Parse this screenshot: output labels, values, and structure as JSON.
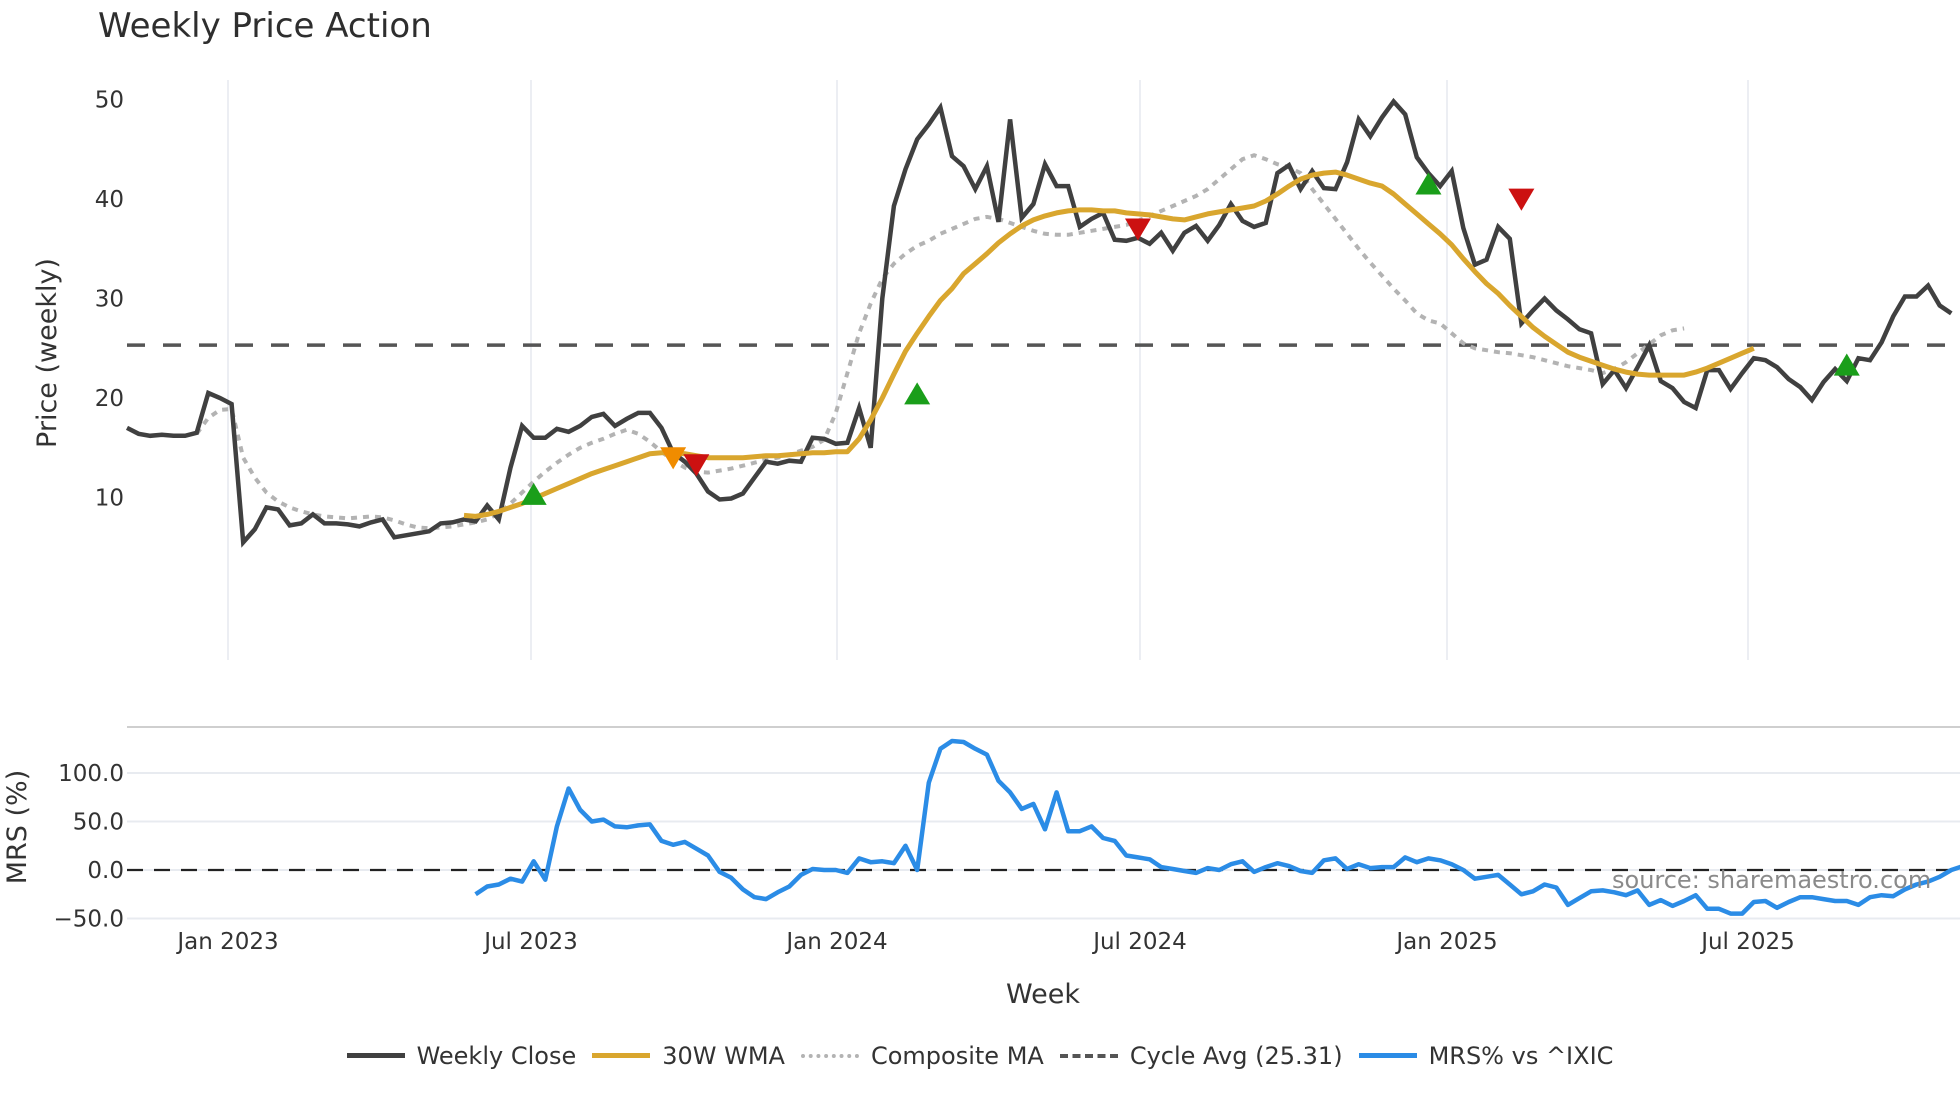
{
  "title": "Weekly Price Action",
  "source": "source: sharemaestro.com",
  "legend": [
    {
      "label": "Weekly Close",
      "color": "#404040",
      "style": "solid"
    },
    {
      "label": "30W WMA",
      "color": "#d9a62e",
      "style": "solid"
    },
    {
      "label": "Composite MA",
      "color": "#b3b3b3",
      "style": "dotted"
    },
    {
      "label": "Cycle Avg (25.31)",
      "color": "#555555",
      "style": "dashed"
    },
    {
      "label": "MRS% vs ^IXIC",
      "color": "#2b8ce6",
      "style": "solid"
    }
  ],
  "chart_data": [
    {
      "type": "line",
      "title": "Weekly Price Action",
      "xlabel": "Week",
      "ylabel": "Price (weekly)",
      "ylim": [
        3,
        52
      ],
      "yticks": [
        10,
        20,
        30,
        40,
        50
      ],
      "xticks": [
        "Jan 2023",
        "Jul 2023",
        "Jan 2024",
        "Jul 2024",
        "Jan 2025",
        "Jul 2025"
      ],
      "grid": "vertical",
      "cycle_avg": 25.31,
      "series": [
        {
          "name": "Weekly Close",
          "color": "#404040",
          "values": [
            17.0,
            16.4,
            16.2,
            16.3,
            16.2,
            16.2,
            16.5,
            20.5,
            20.0,
            19.4,
            5.5,
            6.8,
            9.0,
            8.8,
            7.2,
            7.4,
            8.3,
            7.4,
            7.4,
            7.3,
            7.1,
            7.5,
            7.8,
            6.0,
            6.2,
            6.4,
            6.6,
            7.4,
            7.5,
            7.8,
            7.6,
            9.2,
            7.8,
            13.0,
            17.2,
            16.0,
            16.0,
            16.9,
            16.6,
            17.2,
            18.1,
            18.4,
            17.2,
            17.9,
            18.5,
            18.5,
            17.0,
            14.5,
            13.6,
            12.4,
            10.6,
            9.8,
            9.9,
            10.4,
            12.0,
            13.6,
            13.4,
            13.7,
            13.6,
            16.0,
            15.9,
            15.4,
            15.5,
            19.0,
            15.0,
            30.0,
            39.3,
            43.0,
            46.0,
            47.5,
            49.2,
            44.3,
            43.3,
            41.0,
            43.3,
            37.7,
            48.0,
            38.1,
            39.5,
            43.5,
            41.3,
            41.3,
            37.2,
            38.0,
            38.6,
            35.9,
            35.8,
            36.1,
            35.5,
            36.6,
            34.8,
            36.6,
            37.3,
            35.8,
            37.4,
            39.5,
            37.8,
            37.2,
            37.6,
            42.6,
            43.4,
            41.0,
            42.8,
            41.1,
            41.0,
            43.7,
            48.0,
            46.3,
            48.2,
            49.8,
            48.5,
            44.2,
            42.6,
            41.3,
            42.8,
            37.1,
            33.4,
            33.9,
            37.2,
            36.0,
            27.5,
            28.8,
            30.0,
            28.8,
            27.9,
            26.9,
            26.5,
            21.4,
            22.8,
            21.0,
            23.1,
            25.3,
            21.7,
            21.0,
            19.6,
            19.0,
            22.8,
            22.8,
            20.9,
            22.5,
            24.0,
            23.8,
            23.1,
            21.9,
            21.1,
            19.8,
            21.6,
            22.9,
            21.7,
            24.0,
            23.8,
            25.6,
            28.2,
            30.2,
            30.2,
            31.3,
            29.3,
            28.5
          ]
        },
        {
          "name": "30W WMA",
          "color": "#d9a62e",
          "start_index": 29,
          "values": [
            8.2,
            8.1,
            8.3,
            8.6,
            9.0,
            9.4,
            9.9,
            10.4,
            10.9,
            11.4,
            11.9,
            12.4,
            12.8,
            13.2,
            13.6,
            14.0,
            14.4,
            14.5,
            14.5,
            14.4,
            14.2,
            14.0,
            14.0,
            14.0,
            14.0,
            14.1,
            14.2,
            14.2,
            14.3,
            14.4,
            14.5,
            14.5,
            14.6,
            14.6,
            15.9,
            17.8,
            20.0,
            22.4,
            24.7,
            26.5,
            28.2,
            29.8,
            31.0,
            32.5,
            33.5,
            34.5,
            35.6,
            36.5,
            37.3,
            37.9,
            38.3,
            38.6,
            38.8,
            38.9,
            38.9,
            38.8,
            38.8,
            38.6,
            38.5,
            38.4,
            38.2,
            38.0,
            37.9,
            38.2,
            38.5,
            38.7,
            38.9,
            39.1,
            39.3,
            39.8,
            40.5,
            41.3,
            42.0,
            42.4,
            42.6,
            42.7,
            42.4,
            42.0,
            41.6,
            41.3,
            40.5,
            39.5,
            38.5,
            37.5,
            36.5,
            35.4,
            34.0,
            32.7,
            31.5,
            30.5,
            29.3,
            28.2,
            27.1,
            26.2,
            25.4,
            24.6,
            24.1,
            23.7,
            23.3,
            22.9,
            22.6,
            22.4,
            22.3,
            22.3,
            22.3,
            22.3,
            22.6,
            23.0,
            23.5,
            24.0,
            24.5,
            25.0
          ]
        },
        {
          "name": "Composite MA",
          "color": "#b3b3b3",
          "start_index": 6,
          "values": [
            16.4,
            18.0,
            18.8,
            18.9,
            14.0,
            12.0,
            10.5,
            9.6,
            9.0,
            8.6,
            8.3,
            8.1,
            8.0,
            7.9,
            8.0,
            8.1,
            8.0,
            7.7,
            7.3,
            7.0,
            6.9,
            7.0,
            7.1,
            7.3,
            7.5,
            7.8,
            8.4,
            9.4,
            10.5,
            11.6,
            12.6,
            13.5,
            14.3,
            15.0,
            15.5,
            15.9,
            16.4,
            16.8,
            16.4,
            15.6,
            14.6,
            13.7,
            13.0,
            12.6,
            12.5,
            12.7,
            12.9,
            13.2,
            13.5,
            13.8,
            14.0,
            14.3,
            14.7,
            15.1,
            15.8,
            18.5,
            22.5,
            26.5,
            29.5,
            32.0,
            33.5,
            34.5,
            35.3,
            35.8,
            36.5,
            37.0,
            37.5,
            38.0,
            38.2,
            38.0,
            37.6,
            37.2,
            36.8,
            36.5,
            36.4,
            36.4,
            36.6,
            36.8,
            37.0,
            37.2,
            37.4,
            37.8,
            38.3,
            38.8,
            39.3,
            39.8,
            40.3,
            41.0,
            42.0,
            43.0,
            44.0,
            44.4,
            44.0,
            43.5,
            43.2,
            42.6,
            41.0,
            39.5,
            38.0,
            36.5,
            35.0,
            33.6,
            32.3,
            31.0,
            29.8,
            28.5,
            27.8,
            27.5,
            26.5,
            25.5,
            25.0,
            24.8,
            24.6,
            24.5,
            24.3,
            24.1,
            23.8,
            23.5,
            23.2,
            23.0,
            22.8,
            22.5,
            22.9,
            23.6,
            24.5,
            25.4,
            26.3,
            26.8,
            27.0
          ]
        }
      ],
      "markers": [
        {
          "type": "buy",
          "color": "#1a9e1a",
          "index": 35,
          "price": 10.3
        },
        {
          "type": "sell-orange",
          "color": "#f08c00",
          "index": 47,
          "price": 14.0
        },
        {
          "type": "sell",
          "color": "#cc1111",
          "index": 49,
          "price": 13.3
        },
        {
          "type": "buy",
          "color": "#1a9e1a",
          "index": 68,
          "price": 20.4
        },
        {
          "type": "sell",
          "color": "#cc1111",
          "index": 87,
          "price": 37.0
        },
        {
          "type": "buy",
          "color": "#1a9e1a",
          "index": 112,
          "price": 41.5
        },
        {
          "type": "sell",
          "color": "#cc1111",
          "index": 120,
          "price": 40.0
        },
        {
          "type": "buy",
          "color": "#1a9e1a",
          "index": 148,
          "price": 23.3
        }
      ]
    },
    {
      "type": "line",
      "xlabel": "Week",
      "ylabel": "MRS (%)",
      "ylim": [
        -55,
        140
      ],
      "yticks": [
        "100.0",
        "50.0",
        "0.0",
        "−50.0"
      ],
      "grid": "horizontal",
      "series": [
        {
          "name": "MRS% vs ^IXIC",
          "color": "#2b8ce6",
          "start_index": 30,
          "values": [
            -25,
            -17,
            -15,
            -9,
            -12,
            9,
            -10,
            45,
            84,
            62,
            50,
            52,
            45,
            44,
            46,
            47,
            30,
            26,
            29,
            22,
            15,
            -2,
            -8,
            -20,
            -28,
            -30,
            -23,
            -17,
            -5,
            1,
            0,
            0,
            -3,
            12,
            8,
            9,
            7,
            25,
            0,
            90,
            125,
            133,
            132,
            125,
            119,
            92,
            80,
            63,
            68,
            42,
            80,
            40,
            40,
            45,
            33,
            30,
            15,
            13,
            11,
            3,
            1,
            -1,
            -3,
            2,
            0,
            6,
            9,
            -2,
            3,
            7,
            4,
            -1,
            -3,
            10,
            12,
            1,
            6,
            2,
            3,
            3,
            13,
            8,
            12,
            10,
            6,
            0,
            -9,
            -7,
            -5,
            -15,
            -25,
            -22,
            -15,
            -18,
            -36,
            -29,
            -22,
            -21,
            -23,
            -26,
            -21,
            -36,
            -31,
            -37,
            -32,
            -26,
            -40,
            -40,
            -45,
            -45,
            -33,
            -32,
            -39,
            -33,
            -28,
            -28,
            -30,
            -32,
            -32,
            -36,
            -28,
            -26,
            -27,
            -20,
            -15,
            -12,
            -7,
            0,
            4,
            7,
            -1,
            -5
          ]
        }
      ]
    }
  ]
}
